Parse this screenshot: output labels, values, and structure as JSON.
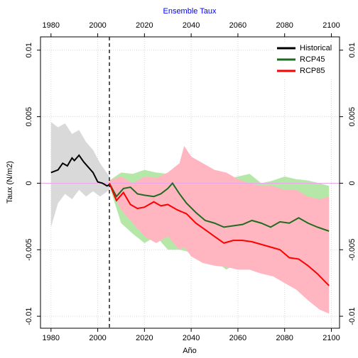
{
  "chart_data": {
    "type": "line",
    "title": "Ensemble Taux",
    "title_color": "#0000ff",
    "x_label": "Año",
    "y_label": "Taux (N/m2)",
    "xlim": [
      1975.5,
      2103.5
    ],
    "ylim": [
      -0.0109,
      0.011
    ],
    "xticks": [
      1980,
      2000,
      2020,
      2040,
      2060,
      2080,
      2100
    ],
    "yticks": [
      -0.01,
      -0.005,
      0,
      0.005,
      0.01
    ],
    "grid": true,
    "legend": "top-right",
    "vline": 2005,
    "hline": 0,
    "hline_color": "#e8a8e8",
    "series": [
      {
        "name": "Historical",
        "color": "#000000",
        "x": [
          1980,
          1983,
          1985,
          1987,
          1989,
          1990,
          1992,
          1994,
          1996,
          1998,
          2000,
          2002,
          2004,
          2005
        ],
        "values": [
          0.0008,
          0.001,
          0.0015,
          0.0013,
          0.0019,
          0.0017,
          0.0021,
          0.0016,
          0.0012,
          0.0008,
          0.0001,
          0,
          -0.0002,
          -0.0001
        ],
        "band": {
          "color": "#d9d9d9",
          "x": [
            1980,
            1983,
            1986,
            1989,
            1992,
            1995,
            1998,
            2001,
            2005
          ],
          "upper": [
            0.0046,
            0.0042,
            0.0045,
            0.0037,
            0.004,
            0.0031,
            0.0025,
            0.0015,
            0.0005
          ],
          "lower": [
            -0.0033,
            -0.0015,
            -0.0008,
            -0.0012,
            -0.0005,
            -0.001,
            -0.0006,
            -0.001,
            -0.0005
          ]
        }
      },
      {
        "name": "RCP45",
        "color": "#1f6b1f",
        "x": [
          2005,
          2008,
          2011,
          2014,
          2017,
          2020,
          2024,
          2027,
          2030,
          2032,
          2035,
          2038,
          2042,
          2046,
          2050,
          2054,
          2058,
          2062,
          2066,
          2070,
          2074,
          2078,
          2082,
          2086,
          2090,
          2094,
          2099
        ],
        "values": [
          0,
          -0.001,
          -0.0004,
          -0.0003,
          -0.0008,
          -0.0009,
          -0.001,
          -0.0008,
          -0.0004,
          0,
          -0.0008,
          -0.0015,
          -0.0022,
          -0.0028,
          -0.003,
          -0.0033,
          -0.0032,
          -0.0031,
          -0.0028,
          -0.003,
          -0.0033,
          -0.0029,
          -0.003,
          -0.0026,
          -0.003,
          -0.0033,
          -0.0036
        ],
        "band": {
          "color": "#b5e8a8",
          "x": [
            2005,
            2010,
            2015,
            2020,
            2025,
            2030,
            2035,
            2040,
            2045,
            2050,
            2055,
            2060,
            2065,
            2070,
            2075,
            2080,
            2085,
            2090,
            2095,
            2099
          ],
          "upper": [
            0.0002,
            0.0008,
            0.0007,
            0.001,
            0.0008,
            0.0007,
            0.0012,
            0.0006,
            0.0003,
            0,
            0.0003,
            0.0005,
            0.0007,
            0,
            0.0002,
            0.0005,
            0.0003,
            0.0002,
            0,
            -0.0002
          ],
          "lower": [
            -0.0002,
            -0.003,
            -0.0038,
            -0.0045,
            -0.004,
            -0.005,
            -0.005,
            -0.0052,
            -0.0057,
            -0.0058,
            -0.0065,
            -0.006,
            -0.006,
            -0.0058,
            -0.0062,
            -0.0063,
            -0.0065,
            -0.0068,
            -0.007,
            -0.0072
          ]
        }
      },
      {
        "name": "RCP85",
        "color": "#ff0000",
        "x": [
          2005,
          2008,
          2011,
          2014,
          2017,
          2020,
          2024,
          2027,
          2030,
          2034,
          2038,
          2042,
          2046,
          2050,
          2054,
          2058,
          2062,
          2066,
          2070,
          2074,
          2078,
          2082,
          2086,
          2090,
          2094,
          2099
        ],
        "values": [
          0,
          -0.0013,
          -0.0007,
          -0.0016,
          -0.0019,
          -0.0018,
          -0.0014,
          -0.0017,
          -0.0016,
          -0.002,
          -0.0023,
          -0.003,
          -0.0035,
          -0.004,
          -0.0045,
          -0.0043,
          -0.0043,
          -0.0044,
          -0.0046,
          -0.0048,
          -0.005,
          -0.0056,
          -0.0057,
          -0.0062,
          -0.0068,
          -0.0077
        ],
        "band": {
          "color": "#ffb6c1",
          "x": [
            2005,
            2010,
            2015,
            2020,
            2025,
            2030,
            2035,
            2037,
            2040,
            2045,
            2050,
            2055,
            2060,
            2065,
            2070,
            2075,
            2080,
            2085,
            2090,
            2095,
            2099
          ],
          "upper": [
            0.0002,
            0.0005,
            0,
            0.0005,
            0.0004,
            0.0008,
            0.0015,
            0.0028,
            0.002,
            0.0015,
            0.001,
            0.0008,
            0.0003,
            0,
            -0.0002,
            -0.0002,
            -0.0005,
            -0.0005,
            -0.001,
            -0.0012,
            -0.001
          ],
          "lower": [
            -0.0002,
            -0.002,
            -0.003,
            -0.004,
            -0.0045,
            -0.004,
            -0.005,
            -0.0048,
            -0.0055,
            -0.006,
            -0.0062,
            -0.0063,
            -0.0065,
            -0.0065,
            -0.0068,
            -0.007,
            -0.0075,
            -0.008,
            -0.0088,
            -0.0095,
            -0.0098
          ]
        }
      }
    ]
  }
}
